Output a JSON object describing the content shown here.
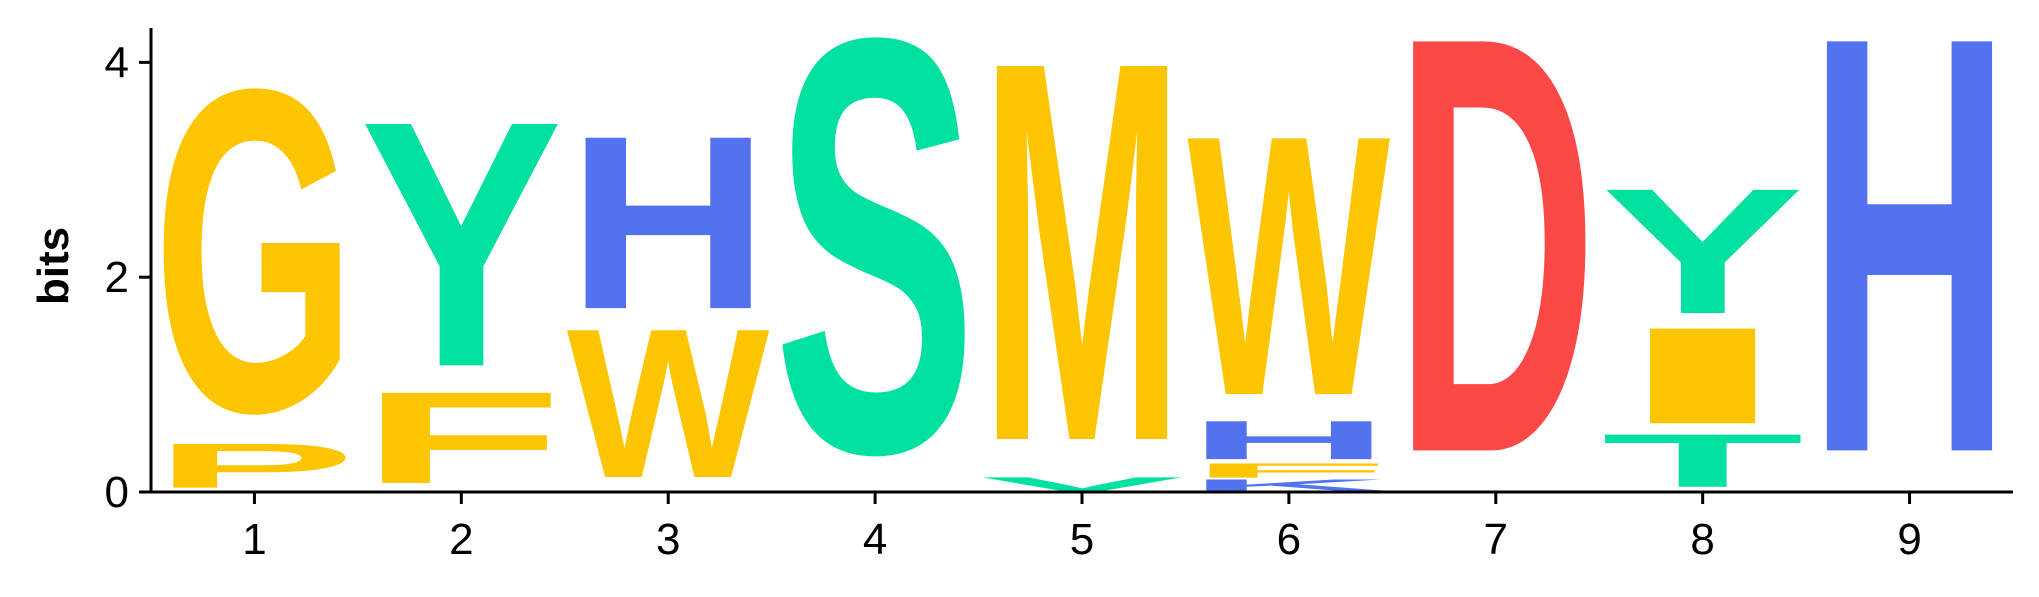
{
  "chart_data": {
    "type": "sequence-logo",
    "ylabel": "bits",
    "ylim": [
      0,
      4.32
    ],
    "y_ticks": [
      "0",
      "2",
      "4"
    ],
    "positions": [
      {
        "label": "1",
        "stack": [
          {
            "letter": "P",
            "bits": 0.46
          },
          {
            "letter": "G",
            "bits": 3.35
          }
        ]
      },
      {
        "label": "2",
        "stack": [
          {
            "letter": "F",
            "bits": 0.95
          },
          {
            "letter": "Y",
            "bits": 2.55
          }
        ]
      },
      {
        "label": "3",
        "stack": [
          {
            "letter": "W",
            "bits": 1.55
          },
          {
            "letter": "H",
            "bits": 1.8
          }
        ]
      },
      {
        "label": "4",
        "stack": [
          {
            "letter": "S",
            "bits": 4.3
          }
        ]
      },
      {
        "label": "5",
        "stack": [
          {
            "letter": "V",
            "bits": 0.14
          },
          {
            "letter": "M",
            "bits": 3.94
          }
        ]
      },
      {
        "label": "6",
        "stack": [
          {
            "letter": "K",
            "bits": 0.12
          },
          {
            "letter": "F",
            "bits": 0.15
          },
          {
            "letter": "H",
            "bits": 0.4
          },
          {
            "letter": "W",
            "bits": 2.7
          }
        ]
      },
      {
        "label": "7",
        "stack": [
          {
            "letter": "D",
            "bits": 4.32
          }
        ]
      },
      {
        "label": "8",
        "stack": [
          {
            "letter": "T",
            "bits": 0.55
          },
          {
            "letter": "I",
            "bits": 1.0
          },
          {
            "letter": "Y",
            "bits": 1.3
          }
        ]
      },
      {
        "label": "9",
        "stack": [
          {
            "letter": "H",
            "bits": 4.32
          }
        ]
      }
    ],
    "colors": {
      "G": "#fdc500",
      "P": "#fdc500",
      "F": "#fdc500",
      "W": "#fdc500",
      "M": "#fdc500",
      "I": "#fdc500",
      "V": "#00e0a0",
      "Y": "#00e0a0",
      "S": "#00e0a0",
      "T": "#00e0a0",
      "H": "#5272f0",
      "K": "#5272f0",
      "D": "#fd4848"
    }
  }
}
